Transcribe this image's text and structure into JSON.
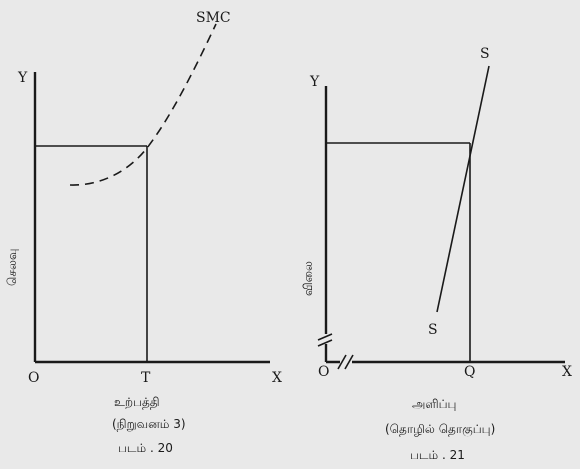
{
  "fig20": {
    "curve_label": "SMC",
    "y_axis": "Y",
    "x_axis": "X",
    "origin": "O",
    "x_point": "T",
    "y_axis_title": "செலவு",
    "x_caption": "உற்பத்தி",
    "x_caption_2": "(நிறுவனம் 3)",
    "figure_caption": "படம் . 20"
  },
  "fig21": {
    "curve_label_top": "S",
    "curve_label_bottom": "S",
    "y_axis": "Y",
    "x_axis": "X",
    "origin": "O",
    "x_point": "Q",
    "y_axis_title": "விலை",
    "x_caption": "அளிப்பு",
    "x_caption_2": "(தொழில் தொகுப்பு)",
    "figure_caption": "படம் . 21"
  }
}
